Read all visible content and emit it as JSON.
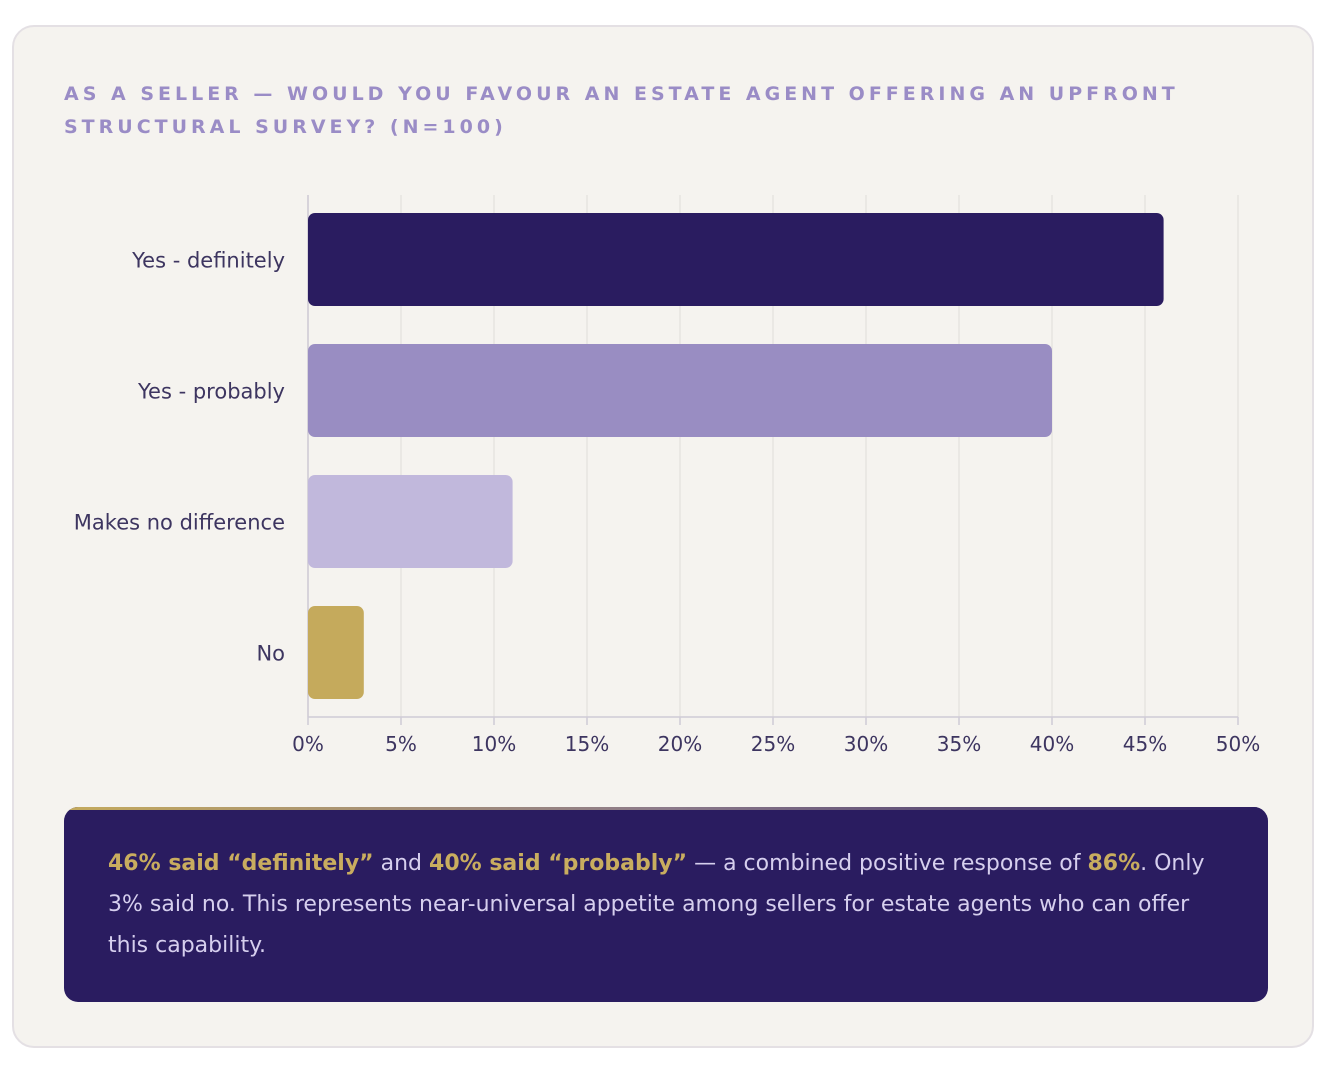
{
  "chart_data": {
    "type": "bar",
    "orientation": "horizontal",
    "title": "As a seller — would you favour an estate agent offering an upfront structural survey? (n=100)",
    "categories": [
      "Yes - definitely",
      "Yes - probably",
      "Makes no difference",
      "No"
    ],
    "values": [
      46,
      40,
      11,
      3
    ],
    "bar_colors": [
      "#2a1c60",
      "#998dc2",
      "#c1b8dc",
      "#c5aa5c"
    ],
    "xlim": [
      0,
      50
    ],
    "xticks": [
      0,
      5,
      10,
      15,
      20,
      25,
      30,
      35,
      40,
      45,
      50
    ],
    "xtick_labels": [
      "0%",
      "5%",
      "10%",
      "15%",
      "20%",
      "25%",
      "30%",
      "35%",
      "40%",
      "45%",
      "50%"
    ],
    "xlabel": "",
    "ylabel": "",
    "grid": true,
    "legend": "none"
  },
  "callout": {
    "hl_definitely": "46% said “definitely”",
    "t_and": " and ",
    "hl_probably": "40% said “probably”",
    "t_combined": " — a combined positive response of ",
    "hl_total": "86%",
    "t_rest": ". Only 3% said no. This represents near-universal appetite among sellers for estate agents who can offer this capability."
  },
  "colors": {
    "card_background": "#f5f3ef",
    "title": "#9a8cc6",
    "axis_text": "#3d3560",
    "callout_background": "#2a1c60",
    "callout_text": "#d6cfee",
    "callout_highlight": "#c9ad5f"
  }
}
